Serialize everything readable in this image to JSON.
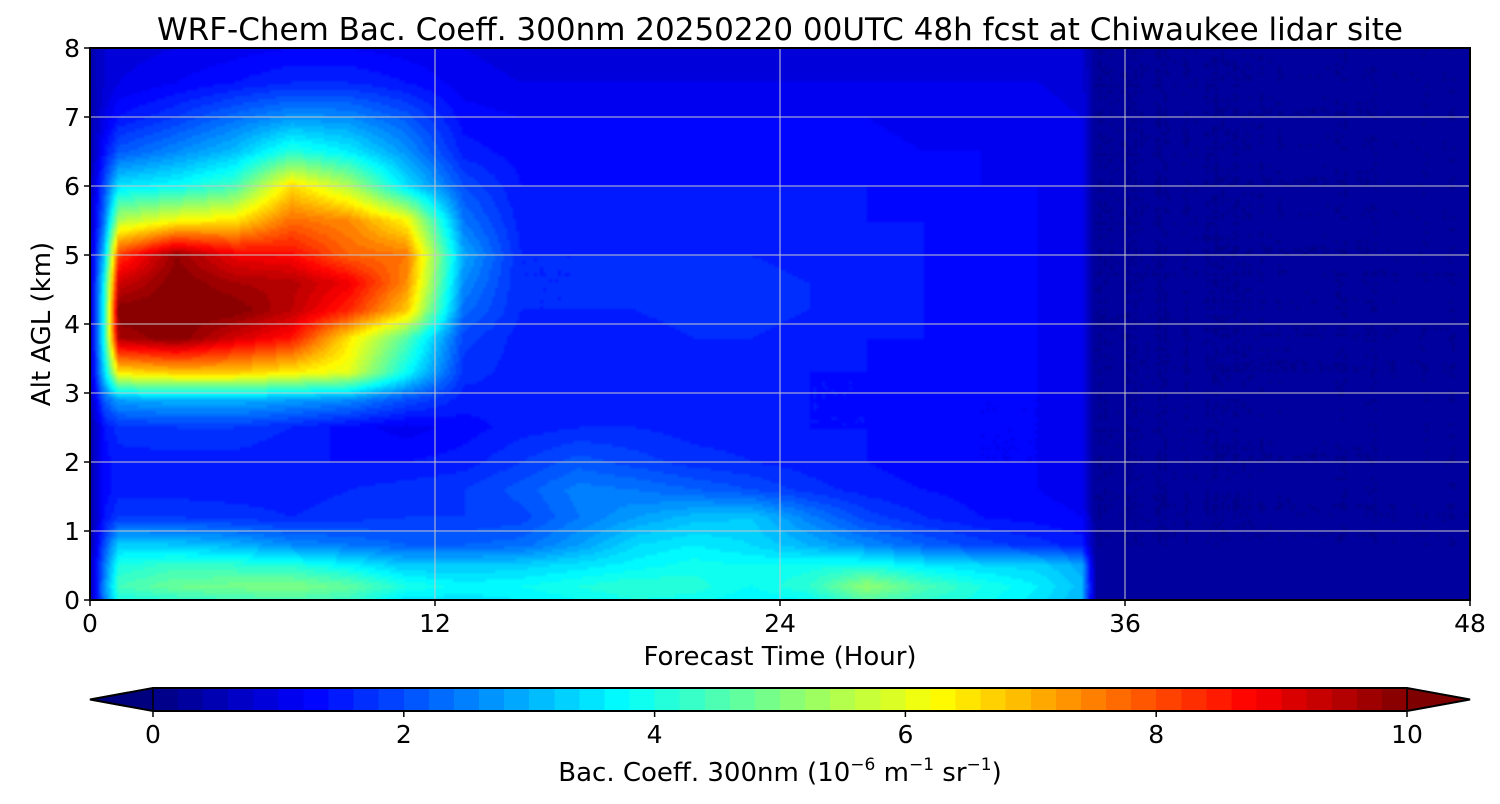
{
  "chart_data": {
    "type": "heatmap",
    "title": "WRF-Chem Bac. Coeff. 300nm  20250220 00UTC 48h fcst at Chiwaukee lidar site",
    "xlabel": "Forecast Time (Hour)",
    "ylabel": "Alt AGL (km)",
    "xlim": [
      0,
      48
    ],
    "ylim": [
      0,
      8
    ],
    "xticks": [
      "0",
      "12",
      "24",
      "36",
      "48"
    ],
    "yticks": [
      "0",
      "1",
      "2",
      "3",
      "4",
      "5",
      "6",
      "7",
      "8"
    ],
    "grid": true,
    "colormap": "jet",
    "colorbar": {
      "orientation": "horizontal",
      "position": "bottom",
      "extend": "both",
      "range": [
        0,
        10
      ],
      "ticks": [
        "0",
        "2",
        "4",
        "6",
        "8",
        "10"
      ],
      "label_main": "Bac. Coeff. 300nm  (10",
      "label_exp1": "−6",
      "label_mid1": " m",
      "label_exp2": "−1",
      "label_mid2": " sr",
      "label_exp3": "−1",
      "label_end": ")",
      "under_color": "#00007f",
      "over_color": "#7f0000"
    },
    "x_hours": [
      0,
      0.5,
      1,
      3,
      5,
      7,
      9,
      11,
      13,
      15,
      17,
      19,
      21,
      23,
      25,
      27,
      29,
      31,
      33,
      34.5,
      35,
      48
    ],
    "y_km": [
      0,
      0.2,
      0.5,
      0.8,
      1.2,
      1.6,
      2.0,
      2.5,
      2.9,
      3.3,
      3.8,
      4.2,
      4.6,
      5.0,
      5.5,
      6.0,
      6.5,
      7.0,
      7.5,
      8.0
    ],
    "values": [
      [
        0.5,
        2.5,
        4.0,
        4.2,
        4.4,
        4.5,
        4.3,
        3.5,
        3.5,
        3.6,
        3.8,
        4.0,
        3.9,
        3.6,
        3.8,
        4.6,
        4.2,
        3.9,
        3.5,
        3.0,
        0.3,
        0.2
      ],
      [
        0.5,
        2.6,
        4.4,
        4.8,
        4.9,
        5.0,
        4.7,
        4.0,
        3.7,
        3.8,
        4.0,
        4.2,
        4.1,
        3.8,
        4.2,
        5.2,
        4.5,
        4.0,
        3.6,
        3.1,
        0.3,
        0.2
      ],
      [
        0.5,
        2.4,
        4.0,
        4.3,
        4.2,
        4.1,
        3.7,
        3.2,
        3.2,
        3.3,
        3.5,
        3.7,
        3.9,
        3.8,
        3.9,
        4.0,
        3.6,
        3.4,
        3.3,
        2.9,
        0.3,
        0.2
      ],
      [
        0.4,
        2.0,
        3.3,
        3.2,
        3.0,
        2.6,
        2.4,
        2.2,
        2.2,
        2.3,
        2.8,
        3.4,
        3.6,
        3.4,
        3.0,
        2.6,
        2.2,
        1.9,
        1.7,
        1.5,
        0.2,
        0.2
      ],
      [
        0.4,
        1.4,
        1.8,
        1.8,
        1.7,
        1.6,
        1.7,
        1.8,
        1.8,
        1.9,
        2.4,
        2.8,
        3.1,
        3.2,
        2.5,
        1.9,
        1.6,
        1.4,
        1.3,
        1.2,
        0.2,
        0.2
      ],
      [
        0.4,
        1.3,
        1.5,
        1.5,
        1.5,
        1.5,
        1.6,
        1.7,
        1.8,
        2.1,
        2.5,
        2.4,
        2.2,
        2.0,
        1.7,
        1.5,
        1.4,
        1.3,
        1.2,
        1.1,
        0.2,
        0.2
      ],
      [
        0.4,
        1.3,
        1.5,
        1.5,
        1.5,
        1.4,
        1.4,
        1.4,
        1.5,
        1.8,
        2.1,
        1.9,
        1.7,
        1.6,
        1.5,
        1.4,
        1.3,
        1.2,
        1.2,
        1.1,
        0.2,
        0.2
      ],
      [
        0.4,
        1.4,
        1.7,
        1.8,
        1.8,
        1.6,
        1.3,
        1.1,
        1.3,
        1.5,
        1.6,
        1.6,
        1.5,
        1.5,
        1.4,
        1.4,
        1.3,
        1.2,
        1.2,
        1.1,
        0.2,
        0.2
      ],
      [
        0.5,
        2.2,
        2.8,
        3.0,
        3.0,
        2.8,
        2.6,
        2.0,
        1.5,
        1.5,
        1.5,
        1.5,
        1.5,
        1.5,
        1.4,
        1.4,
        1.3,
        1.2,
        1.2,
        1.1,
        0.2,
        0.2
      ],
      [
        0.6,
        3.4,
        6.5,
        6.8,
        6.8,
        6.4,
        6.0,
        3.8,
        1.7,
        1.5,
        1.5,
        1.5,
        1.5,
        1.5,
        1.4,
        1.4,
        1.3,
        1.3,
        1.2,
        1.1,
        0.2,
        0.2
      ],
      [
        0.6,
        4.0,
        9.6,
        10.0,
        9.2,
        8.6,
        6.5,
        4.6,
        1.9,
        1.5,
        1.5,
        1.5,
        1.6,
        1.6,
        1.5,
        1.4,
        1.4,
        1.3,
        1.2,
        1.1,
        0.2,
        0.2
      ],
      [
        0.6,
        4.0,
        10.0,
        10.0,
        10.0,
        9.4,
        8.4,
        6.8,
        2.3,
        1.6,
        1.6,
        1.6,
        1.7,
        1.7,
        1.6,
        1.5,
        1.4,
        1.3,
        1.2,
        1.1,
        0.2,
        0.2
      ],
      [
        0.6,
        3.8,
        9.2,
        10.0,
        9.6,
        9.5,
        8.9,
        7.4,
        2.6,
        1.6,
        1.6,
        1.7,
        1.7,
        1.7,
        1.6,
        1.5,
        1.4,
        1.3,
        1.2,
        1.1,
        0.2,
        0.2
      ],
      [
        0.6,
        3.2,
        8.2,
        9.8,
        8.9,
        8.7,
        7.8,
        7.6,
        2.9,
        1.6,
        1.6,
        1.6,
        1.6,
        1.6,
        1.5,
        1.5,
        1.4,
        1.3,
        1.2,
        1.1,
        0.2,
        0.2
      ],
      [
        0.5,
        2.4,
        5.5,
        6.2,
        6.5,
        7.7,
        7.4,
        6.3,
        2.4,
        1.5,
        1.5,
        1.5,
        1.5,
        1.5,
        1.5,
        1.4,
        1.4,
        1.3,
        1.2,
        1.1,
        0.2,
        0.2
      ],
      [
        0.5,
        2.0,
        3.5,
        3.8,
        4.4,
        6.6,
        5.5,
        3.5,
        2.0,
        1.4,
        1.4,
        1.4,
        1.4,
        1.4,
        1.4,
        1.4,
        1.3,
        1.2,
        1.2,
        1.1,
        0.2,
        0.2
      ],
      [
        0.4,
        1.4,
        2.1,
        2.6,
        3.1,
        4.1,
        3.6,
        2.7,
        1.5,
        1.3,
        1.3,
        1.3,
        1.3,
        1.3,
        1.3,
        1.3,
        1.2,
        1.2,
        1.1,
        1.1,
        0.2,
        0.2
      ],
      [
        0.4,
        1.0,
        1.4,
        1.8,
        2.3,
        2.7,
        2.6,
        2.1,
        1.3,
        1.2,
        1.2,
        1.2,
        1.2,
        1.2,
        1.2,
        1.2,
        1.1,
        1.1,
        1.1,
        1.0,
        0.2,
        0.2
      ],
      [
        0.4,
        0.8,
        1.0,
        1.2,
        1.4,
        1.6,
        1.6,
        1.4,
        1.1,
        1.0,
        1.0,
        1.0,
        1.0,
        1.0,
        1.0,
        1.0,
        1.0,
        1.0,
        1.0,
        0.9,
        0.2,
        0.2
      ],
      [
        0.4,
        0.8,
        0.9,
        1.0,
        1.1,
        1.2,
        1.2,
        1.1,
        1.0,
        0.9,
        0.9,
        0.9,
        0.9,
        0.9,
        0.9,
        0.9,
        0.9,
        0.9,
        0.9,
        0.8,
        0.2,
        0.2
      ]
    ]
  }
}
